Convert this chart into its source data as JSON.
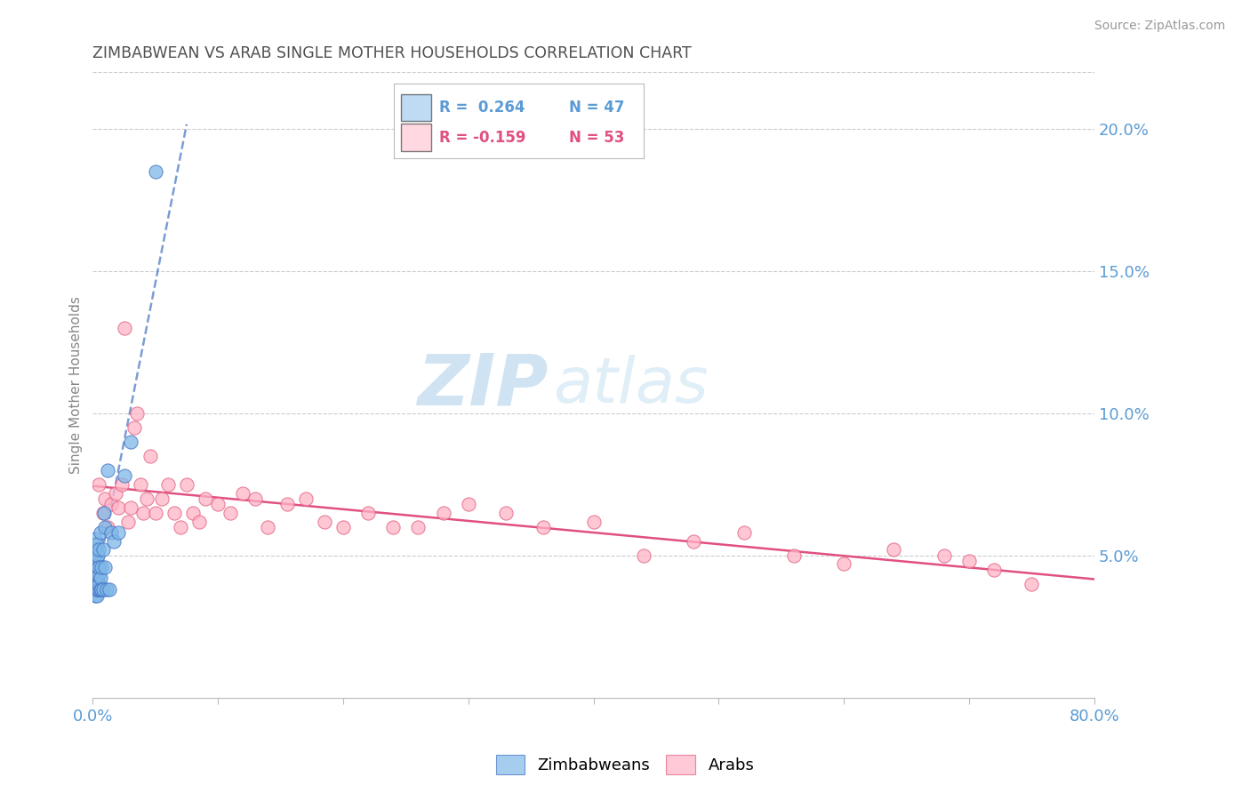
{
  "title": "ZIMBABWEAN VS ARAB SINGLE MOTHER HOUSEHOLDS CORRELATION CHART",
  "source": "Source: ZipAtlas.com",
  "ylabel": "Single Mother Households",
  "xlim": [
    0.0,
    0.8
  ],
  "ylim": [
    0.0,
    0.22
  ],
  "yticks_right": [
    0.05,
    0.1,
    0.15,
    0.2
  ],
  "yticklabels_right": [
    "5.0%",
    "10.0%",
    "15.0%",
    "20.0%"
  ],
  "zimbabwean_color": "#7EB8E8",
  "arab_color": "#FFB3C6",
  "trendline_zimbabwean_color": "#4472C4",
  "trendline_arab_color": "#E05080",
  "legend_R_zimbabwean": "R =  0.264",
  "legend_N_zimbabwean": "N = 47",
  "legend_R_arab": "R = -0.159",
  "legend_N_arab": "N = 53",
  "legend_label_zimbabwean": "Zimbabweans",
  "legend_label_arab": "Arabs",
  "watermark_zip": "ZIP",
  "watermark_atlas": "atlas",
  "background_color": "#FFFFFF",
  "grid_color": "#CCCCCC",
  "title_color": "#505050",
  "axis_label_color": "#5B9BD5",
  "tick_color": "#5B9BD5",
  "zimbabwean_x": [
    0.001,
    0.001,
    0.001,
    0.001,
    0.001,
    0.002,
    0.002,
    0.002,
    0.002,
    0.002,
    0.002,
    0.002,
    0.003,
    0.003,
    0.003,
    0.003,
    0.003,
    0.003,
    0.004,
    0.004,
    0.004,
    0.004,
    0.004,
    0.005,
    0.005,
    0.005,
    0.005,
    0.005,
    0.006,
    0.006,
    0.006,
    0.007,
    0.007,
    0.008,
    0.008,
    0.009,
    0.01,
    0.01,
    0.011,
    0.012,
    0.013,
    0.015,
    0.017,
    0.02,
    0.025,
    0.03,
    0.05
  ],
  "zimbabwean_y": [
    0.038,
    0.042,
    0.044,
    0.048,
    0.052,
    0.036,
    0.04,
    0.042,
    0.045,
    0.048,
    0.052,
    0.056,
    0.036,
    0.038,
    0.041,
    0.044,
    0.048,
    0.054,
    0.038,
    0.04,
    0.043,
    0.046,
    0.05,
    0.038,
    0.04,
    0.043,
    0.046,
    0.052,
    0.038,
    0.042,
    0.058,
    0.038,
    0.046,
    0.038,
    0.052,
    0.065,
    0.046,
    0.06,
    0.038,
    0.08,
    0.038,
    0.058,
    0.055,
    0.058,
    0.078,
    0.09,
    0.185
  ],
  "arab_x": [
    0.005,
    0.008,
    0.01,
    0.012,
    0.015,
    0.018,
    0.02,
    0.023,
    0.025,
    0.028,
    0.03,
    0.033,
    0.035,
    0.038,
    0.04,
    0.043,
    0.046,
    0.05,
    0.055,
    0.06,
    0.065,
    0.07,
    0.075,
    0.08,
    0.085,
    0.09,
    0.1,
    0.11,
    0.12,
    0.13,
    0.14,
    0.155,
    0.17,
    0.185,
    0.2,
    0.22,
    0.24,
    0.26,
    0.28,
    0.3,
    0.33,
    0.36,
    0.4,
    0.44,
    0.48,
    0.52,
    0.56,
    0.6,
    0.64,
    0.68,
    0.7,
    0.72,
    0.75
  ],
  "arab_y": [
    0.075,
    0.065,
    0.07,
    0.06,
    0.068,
    0.072,
    0.067,
    0.075,
    0.13,
    0.062,
    0.067,
    0.095,
    0.1,
    0.075,
    0.065,
    0.07,
    0.085,
    0.065,
    0.07,
    0.075,
    0.065,
    0.06,
    0.075,
    0.065,
    0.062,
    0.07,
    0.068,
    0.065,
    0.072,
    0.07,
    0.06,
    0.068,
    0.07,
    0.062,
    0.06,
    0.065,
    0.06,
    0.06,
    0.065,
    0.068,
    0.065,
    0.06,
    0.062,
    0.05,
    0.055,
    0.058,
    0.05,
    0.047,
    0.052,
    0.05,
    0.048,
    0.045,
    0.04
  ]
}
